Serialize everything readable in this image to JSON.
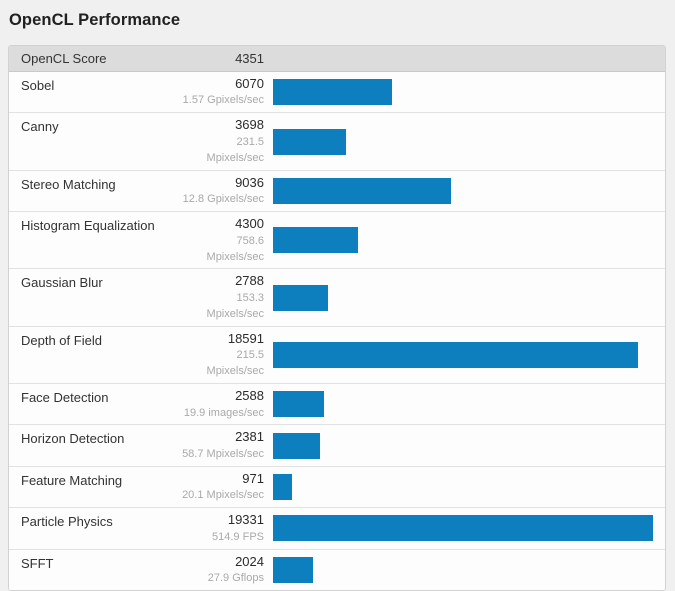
{
  "page": {
    "background": "#f0f0f1"
  },
  "title": "OpenCL Performance",
  "score_header": {
    "label": "OpenCL Score",
    "value": "4351"
  },
  "chart_data": {
    "type": "bar",
    "orientation": "horizontal",
    "title": "OpenCL Performance",
    "overall_score": {
      "label": "OpenCL Score",
      "value": 4351
    },
    "categories": [
      "Sobel",
      "Canny",
      "Stereo Matching",
      "Histogram Equalization",
      "Gaussian Blur",
      "Depth of Field",
      "Face Detection",
      "Horizon Detection",
      "Feature Matching",
      "Particle Physics",
      "SFFT"
    ],
    "values": [
      6070,
      3698,
      9036,
      4300,
      2788,
      18591,
      2588,
      2381,
      971,
      19331,
      2024
    ],
    "rates": [
      "1.57 Gpixels/sec",
      "231.5 Mpixels/sec",
      "12.8 Gpixels/sec",
      "758.6 Mpixels/sec",
      "153.3 Mpixels/sec",
      "215.5 Mpixels/sec",
      "19.9 images/sec",
      "58.7 Mpixels/sec",
      "20.1 Mpixels/sec",
      "514.9 FPS",
      "27.9 Gflops"
    ],
    "xlim": [
      0,
      19331
    ],
    "bar_color": "#0d7ebe",
    "grid": false,
    "legend": null
  },
  "colors": {
    "bar": "#0d7ebe",
    "header_bg": "#dcdcdc",
    "card_bg": "#fdfdfd",
    "page_bg": "#f0f0f1",
    "rate_text": "#a9a9a9"
  }
}
